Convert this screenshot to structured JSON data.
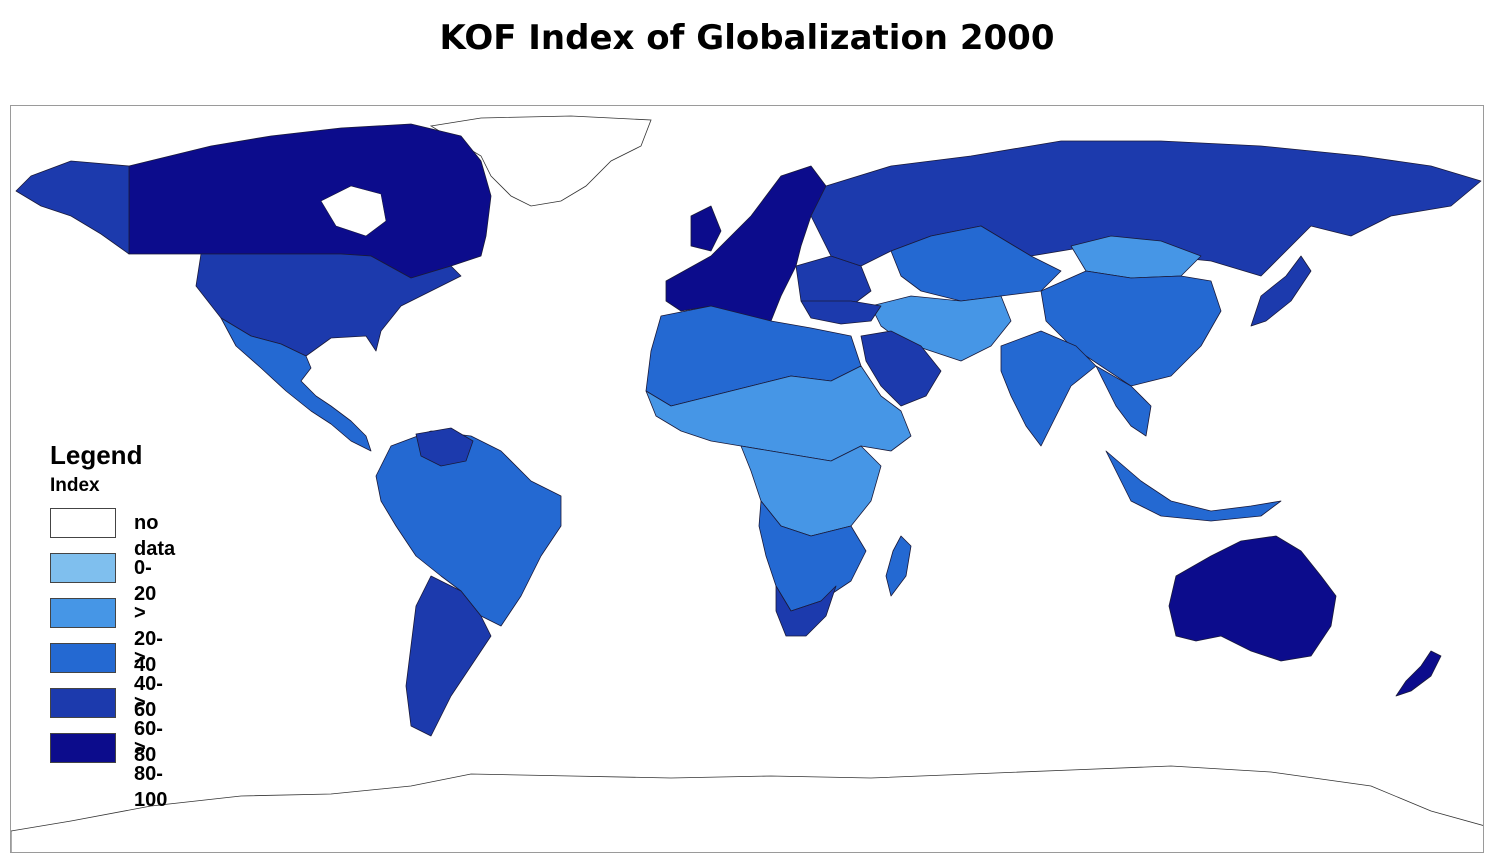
{
  "title": "KOF Index of Globalization 2000",
  "legend": {
    "heading": "Legend",
    "subheading": "Index",
    "classes": [
      {
        "label": "no data",
        "color": "#ffffff"
      },
      {
        "label": "0-20",
        "color": "#7fbfee"
      },
      {
        "label": "> 20-40",
        "color": "#4696e6"
      },
      {
        "label": "> 40-60",
        "color": "#2469d2"
      },
      {
        "label": "> 60-80",
        "color": "#1c3aad"
      },
      {
        "label": "> 80-100",
        "color": "#0c0c8c"
      }
    ]
  },
  "colors": {
    "no_data": "#ffffff",
    "c0_20": "#7fbfee",
    "c20_40": "#4696e6",
    "c40_60": "#2469d2",
    "c60_80": "#1c3aad",
    "c80_100": "#0c0c8c",
    "border": "#1a1a3a"
  }
}
